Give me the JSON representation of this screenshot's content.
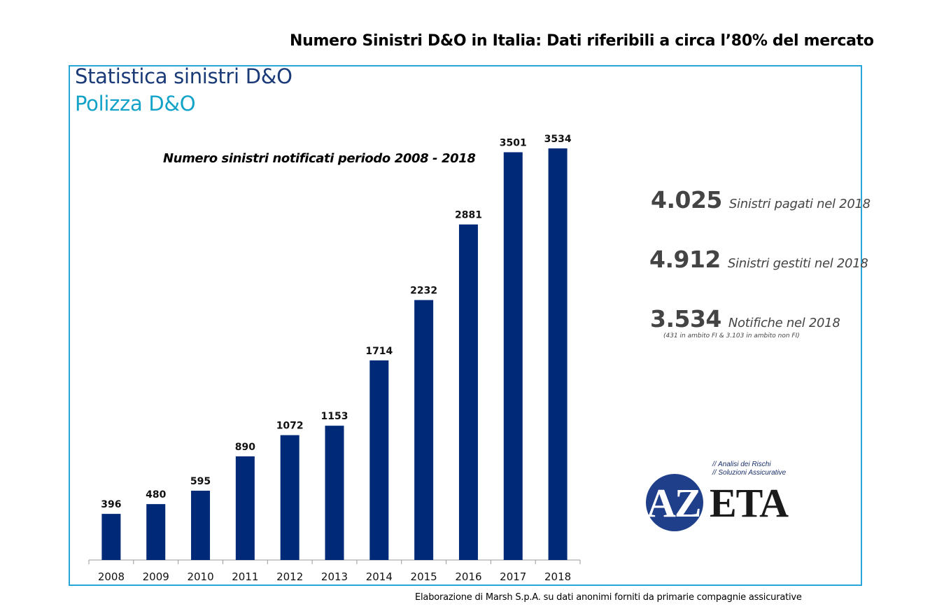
{
  "header": {
    "title": "Numero Sinistri D&O in Italia: Dati riferibili a circa l’80% del mercato"
  },
  "panel": {
    "heading1": "Statistica sinistri D&O",
    "heading2": "Polizza D&O"
  },
  "chart_data": {
    "type": "bar",
    "title": "Numero sinistri notificati periodo 2008 - 2018",
    "categories": [
      "2008",
      "2009",
      "2010",
      "2011",
      "2012",
      "2013",
      "2014",
      "2015",
      "2016",
      "2017",
      "2018"
    ],
    "values": [
      396,
      480,
      595,
      890,
      1072,
      1153,
      1714,
      2232,
      2881,
      3501,
      3534
    ],
    "data_labels": [
      "396",
      "480",
      "595",
      "890",
      "1072",
      "1153",
      "1714",
      "2232",
      "2881",
      "3501",
      "3534"
    ],
    "xlabel": "",
    "ylabel": "",
    "ylim": [
      0,
      3534
    ],
    "grid": false,
    "bar_color": "#002a77"
  },
  "stats": [
    {
      "value": "4.025",
      "label": "Sinistri pagati nel 2018"
    },
    {
      "value": "4.912",
      "label": "Sinistri gestiti nel 2018"
    },
    {
      "value": "3.534",
      "label": "Notifiche nel 2018"
    }
  ],
  "stats_note": "(431 in ambito FI & 3.103 in ambito non FI)",
  "logo": {
    "tagline1": "// Analisi dei Rischi",
    "tagline2": "// Soluzioni Assicurative",
    "text_az": "AZ",
    "text_eta": "ETA",
    "colors": {
      "circle": "#1f3f8a",
      "text": "#1a1a1a"
    }
  },
  "footer": {
    "source": "Elaborazione di Marsh S.p.A. su dati anonimi forniti da primarie compagnie assicurative"
  },
  "colors": {
    "frame": "#2aa5d8",
    "heading1": "#1a3a78",
    "heading2": "#14a3c8",
    "stats_text": "#444444"
  }
}
